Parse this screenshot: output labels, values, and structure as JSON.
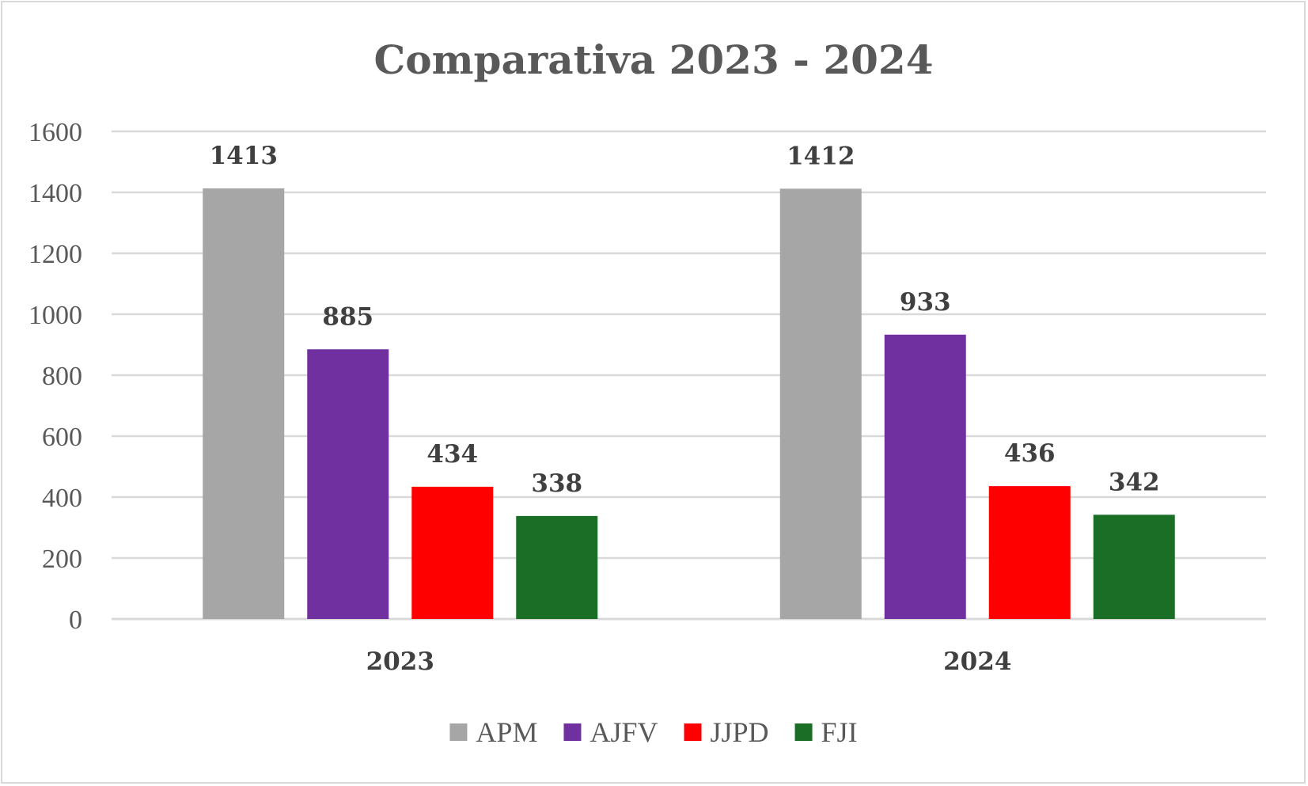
{
  "chart_data": {
    "type": "bar",
    "title": "Comparativa 2023 - 2024",
    "categories": [
      "2023",
      "2024"
    ],
    "series": [
      {
        "name": "APM",
        "color": "#a6a6a6",
        "values": [
          1413,
          1412
        ]
      },
      {
        "name": "AJFV",
        "color": "#7030a0",
        "values": [
          885,
          933
        ]
      },
      {
        "name": "JJPD",
        "color": "#ff0000",
        "values": [
          434,
          436
        ]
      },
      {
        "name": "FJI",
        "color": "#1b6e26",
        "values": [
          338,
          342
        ]
      }
    ],
    "ylim": [
      0,
      1600
    ],
    "yticks": [
      0,
      200,
      400,
      600,
      800,
      1000,
      1200,
      1400,
      1600
    ],
    "grid": true,
    "legend": "bottom",
    "data_labels": true
  }
}
